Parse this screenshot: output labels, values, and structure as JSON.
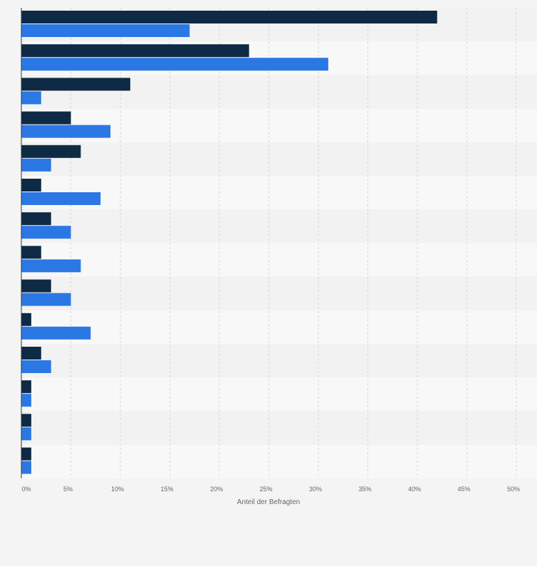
{
  "chart_data": {
    "type": "bar",
    "orientation": "horizontal",
    "categories": [
      "",
      "",
      "",
      "",
      "",
      "",
      "",
      "",
      "",
      "",
      "",
      "",
      "",
      ""
    ],
    "series": [
      {
        "color": "#0f2a44",
        "values": [
          42,
          23,
          11,
          5,
          6,
          2,
          3,
          2,
          3,
          1,
          2,
          1,
          1,
          1
        ]
      },
      {
        "color": "#2b78e4",
        "values": [
          17,
          31,
          2,
          9,
          3,
          8,
          5,
          6,
          5,
          7,
          3,
          1,
          1,
          1
        ]
      }
    ],
    "xlabel": "Anteil der Befragten",
    "xlim": [
      0,
      50
    ],
    "xticks": [
      "0%",
      "5%",
      "10%",
      "15%",
      "20%",
      "25%",
      "30%",
      "35%",
      "40%",
      "45%",
      "50%"
    ],
    "grid": "vertical dashed",
    "legend": "none"
  }
}
